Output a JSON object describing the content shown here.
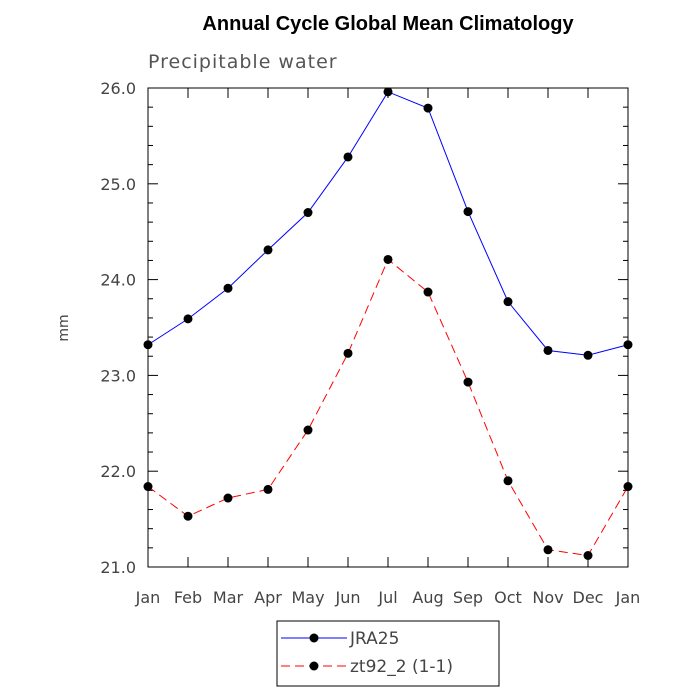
{
  "chart_data": {
    "type": "line",
    "title": "Annual Cycle Global Mean Climatology",
    "subtitle": "Precipitable water",
    "xlabel": "",
    "ylabel": "mm",
    "categories": [
      "Jan",
      "Feb",
      "Mar",
      "Apr",
      "May",
      "Jun",
      "Jul",
      "Aug",
      "Sep",
      "Oct",
      "Nov",
      "Dec",
      "Jan"
    ],
    "ylim": [
      21.0,
      26.0
    ],
    "yticks": [
      21.0,
      22.0,
      23.0,
      24.0,
      25.0,
      26.0
    ],
    "ytick_labels": [
      "21.0",
      "22.0",
      "23.0",
      "24.0",
      "25.0",
      "26.0"
    ],
    "series": [
      {
        "name": "JRA25",
        "color": "#0000ff",
        "dash": "solid",
        "values": [
          23.32,
          23.59,
          23.91,
          24.31,
          24.7,
          25.28,
          25.96,
          25.79,
          24.71,
          23.77,
          23.26,
          23.21,
          23.32
        ]
      },
      {
        "name": "zt92_2 (1-1)",
        "color": "#ff0000",
        "dash": "dashed",
        "values": [
          21.84,
          21.53,
          21.72,
          21.81,
          22.43,
          23.23,
          24.21,
          23.87,
          22.93,
          21.9,
          21.18,
          21.12,
          21.84
        ]
      }
    ],
    "legend": {
      "entries": [
        "JRA25",
        "zt92_2 (1-1)"
      ],
      "position": "bottom-center"
    }
  }
}
